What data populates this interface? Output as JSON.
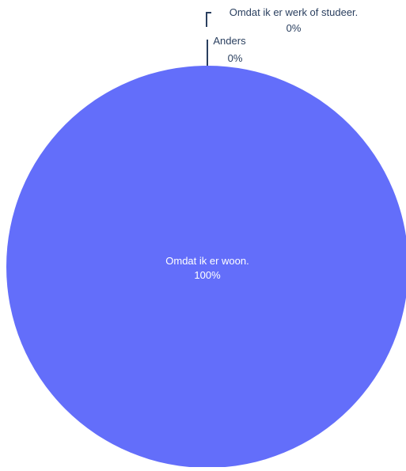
{
  "chart_data": {
    "type": "pie",
    "slices": [
      {
        "label": "Omdat ik er woon.",
        "value": 100,
        "percent_label": "100%",
        "color": "#636efa"
      },
      {
        "label": "Anders",
        "value": 0,
        "percent_label": "0%",
        "color": "#ef553b"
      },
      {
        "label": "Omdat ik er werk of studeer.",
        "value": 0,
        "percent_label": "0%",
        "color": "#00cc96"
      }
    ],
    "legend": "none",
    "label_color_inside": "#ffffff",
    "label_color_outside": "#2a3f5f",
    "connector_color": "#2a3f5f"
  }
}
